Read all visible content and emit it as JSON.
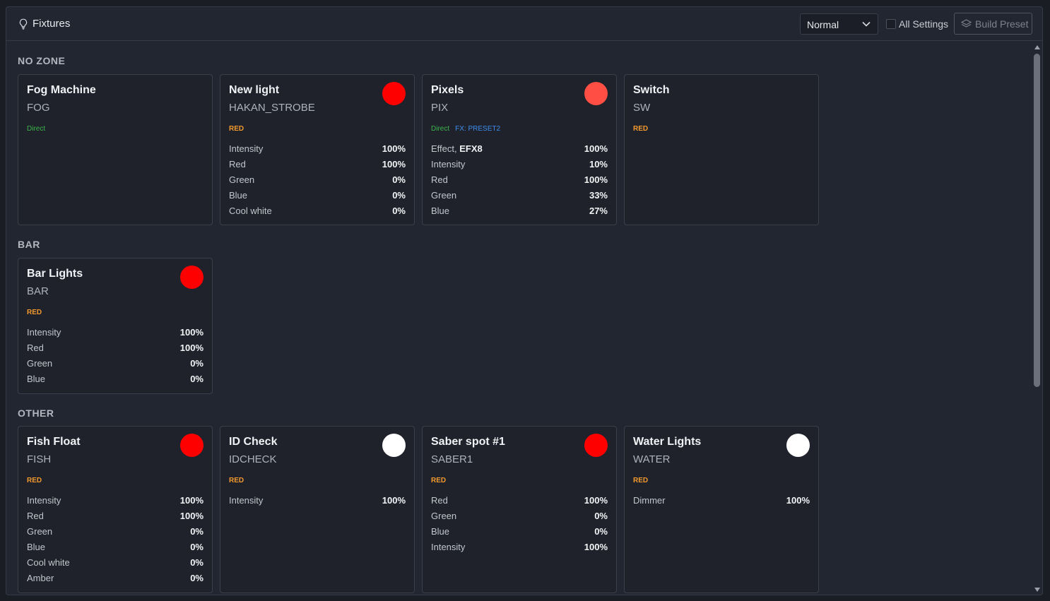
{
  "header": {
    "title": "Fixtures",
    "mode_select": "Normal",
    "all_settings_label": "All Settings",
    "build_preset_label": "Build Preset"
  },
  "colors": {
    "red": "#ff0000",
    "salmon": "#ff4f45",
    "white": "#ffffff",
    "tag_direct": "#3bb54a",
    "tag_red": "#f29a2e",
    "tag_fx": "#3f8ef0"
  },
  "zones": [
    {
      "title": "NO ZONE",
      "fixtures": [
        {
          "name": "Fog Machine",
          "code": "FOG",
          "tags": [
            "Direct"
          ],
          "swatch": null,
          "rows": []
        },
        {
          "name": "New light",
          "code": "HAKAN_STROBE",
          "tags": [
            "RED"
          ],
          "swatch": "#ff0000",
          "rows": [
            {
              "label": "Intensity",
              "value": "100%"
            },
            {
              "label": "Red",
              "value": "100%"
            },
            {
              "label": "Green",
              "value": "0%"
            },
            {
              "label": "Blue",
              "value": "0%"
            },
            {
              "label": "Cool white",
              "value": "0%"
            }
          ]
        },
        {
          "name": "Pixels",
          "code": "PIX",
          "tags": [
            "Direct",
            "FX: PRESET2"
          ],
          "swatch": "#ff4f45",
          "rows": [
            {
              "label": "Effect, ",
              "label_bold": "EFX8",
              "value": "100%"
            },
            {
              "label": "Intensity",
              "value": "10%"
            },
            {
              "label": "Red",
              "value": "100%"
            },
            {
              "label": "Green",
              "value": "33%"
            },
            {
              "label": "Blue",
              "value": "27%"
            }
          ]
        },
        {
          "name": "Switch",
          "code": "SW",
          "tags": [
            "RED"
          ],
          "swatch": null,
          "rows": []
        }
      ]
    },
    {
      "title": "BAR",
      "fixtures": [
        {
          "name": "Bar Lights",
          "code": "BAR",
          "tags": [
            "RED"
          ],
          "swatch": "#ff0000",
          "rows": [
            {
              "label": "Intensity",
              "value": "100%"
            },
            {
              "label": "Red",
              "value": "100%"
            },
            {
              "label": "Green",
              "value": "0%"
            },
            {
              "label": "Blue",
              "value": "0%"
            }
          ]
        }
      ]
    },
    {
      "title": "OTHER",
      "fixtures": [
        {
          "name": "Fish Float",
          "code": "FISH",
          "tags": [
            "RED"
          ],
          "swatch": "#ff0000",
          "rows": [
            {
              "label": "Intensity",
              "value": "100%"
            },
            {
              "label": "Red",
              "value": "100%"
            },
            {
              "label": "Green",
              "value": "0%"
            },
            {
              "label": "Blue",
              "value": "0%"
            },
            {
              "label": "Cool white",
              "value": "0%"
            },
            {
              "label": "Amber",
              "value": "0%"
            }
          ]
        },
        {
          "name": "ID Check",
          "code": "IDCHECK",
          "tags": [
            "RED"
          ],
          "swatch": "#ffffff",
          "rows": [
            {
              "label": "Intensity",
              "value": "100%"
            }
          ]
        },
        {
          "name": "Saber spot #1",
          "code": "SABER1",
          "tags": [
            "RED"
          ],
          "swatch": "#ff0000",
          "rows": [
            {
              "label": "Red",
              "value": "100%"
            },
            {
              "label": "Green",
              "value": "0%"
            },
            {
              "label": "Blue",
              "value": "0%"
            },
            {
              "label": "Intensity",
              "value": "100%"
            }
          ]
        },
        {
          "name": "Water Lights",
          "code": "WATER",
          "tags": [
            "RED"
          ],
          "swatch": "#ffffff",
          "rows": [
            {
              "label": "Dimmer",
              "value": "100%"
            }
          ]
        }
      ]
    }
  ]
}
